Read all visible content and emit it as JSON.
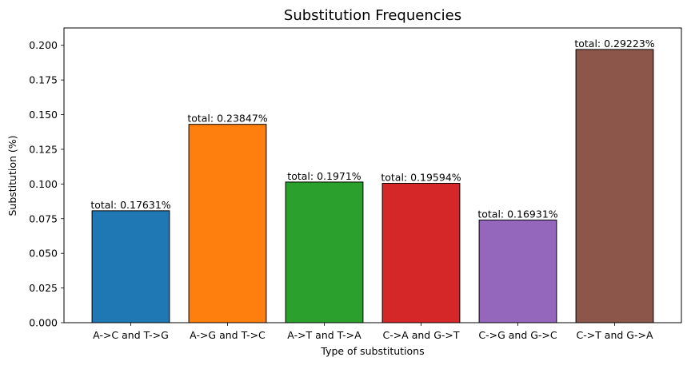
{
  "chart_data": {
    "type": "bar",
    "title": "Substitution Frequencies",
    "xlabel": "Type of substitutions",
    "ylabel": "Substitution (%)",
    "ylim": [
      0,
      0.2125
    ],
    "yticks": [
      "0.000",
      "0.025",
      "0.050",
      "0.075",
      "0.100",
      "0.125",
      "0.150",
      "0.175",
      "0.200"
    ],
    "grid": false,
    "categories": [
      "A->C and T->G",
      "A->G and T->C",
      "A->T and T->A",
      "C->A and G->T",
      "C->G and G->C",
      "C->T and G->A"
    ],
    "values": [
      0.0807,
      0.143,
      0.1014,
      0.1005,
      0.074,
      0.197
    ],
    "labels": [
      "total: 0.17631%",
      "total: 0.23847%",
      "total: 0.1971%",
      "total: 0.19594%",
      "total: 0.16931%",
      "total: 0.29223%"
    ],
    "colors": [
      "#1f77b4",
      "#ff7f0e",
      "#2ca02c",
      "#d62728",
      "#9467bd",
      "#8c564b"
    ]
  }
}
